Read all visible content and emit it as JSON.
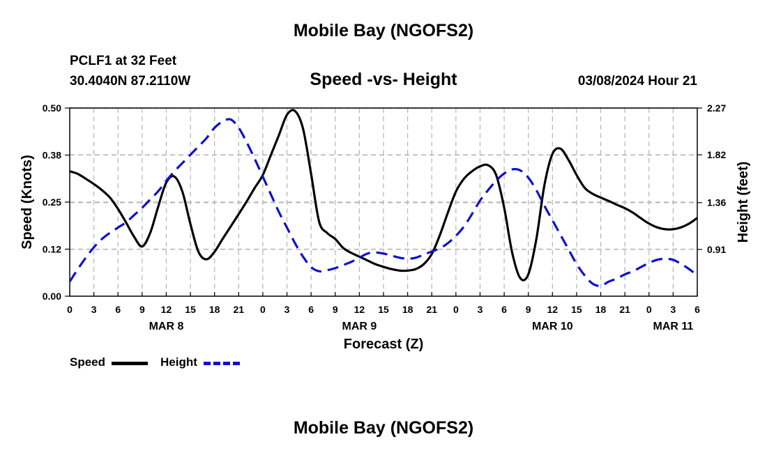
{
  "header": {
    "title_top": "Mobile Bay (NGOFS2)",
    "station_line": "PCLF1 at 32 Feet",
    "coords_line": "30.4040N  87.2110W",
    "chart_title": "Speed -vs- Height",
    "datetime_line": "03/08/2024 Hour 21",
    "title_bottom": "Mobile Bay (NGOFS2)"
  },
  "colors": {
    "speed": "#000000",
    "height": "#1010cc",
    "grid": "#b4b4b4"
  },
  "legend": {
    "speed_label": "Speed",
    "height_label": "Height"
  },
  "chart_data": {
    "type": "line",
    "title": "Speed -vs- Height",
    "xlabel": "Forecast (Z)",
    "ylabel_left": "Speed (Knots)",
    "ylabel_right": "Height (feet)",
    "x_unit": "forecast hour from MAR 8 00Z",
    "xlim": [
      0,
      78
    ],
    "ylim_left": [
      0,
      0.5
    ],
    "ylim_right": [
      0.46,
      2.27
    ],
    "x_ticks": [
      0,
      3,
      6,
      9,
      12,
      15,
      18,
      21,
      24,
      27,
      30,
      33,
      36,
      39,
      42,
      45,
      48,
      51,
      54,
      57,
      60,
      63,
      66,
      69,
      72,
      75,
      78
    ],
    "x_tick_labels": [
      "0",
      "3",
      "6",
      "9",
      "12",
      "15",
      "18",
      "21",
      "0",
      "3",
      "6",
      "9",
      "12",
      "15",
      "18",
      "21",
      "0",
      "3",
      "6",
      "9",
      "12",
      "15",
      "18",
      "21",
      "0",
      "3",
      "6"
    ],
    "day_labels": [
      {
        "label": "MAR 8",
        "x": 12
      },
      {
        "label": "MAR 9",
        "x": 36
      },
      {
        "label": "MAR 10",
        "x": 60
      },
      {
        "label": "MAR 11",
        "x": 75
      }
    ],
    "y_left_ticks": [
      0.0,
      0.125,
      0.25,
      0.375,
      0.5
    ],
    "y_left_tick_labels": [
      "0.00",
      "0.12",
      "0.25",
      "0.38",
      "0.50"
    ],
    "y_right_ticks": [
      0.91,
      1.36,
      1.82,
      2.27
    ],
    "y_right_tick_labels": [
      "0.91",
      "1.36",
      "1.82",
      "2.27"
    ],
    "grid": true,
    "series": [
      {
        "name": "Speed",
        "axis": "left",
        "style": "solid",
        "x": [
          0,
          1,
          2,
          3,
          4,
          5,
          6,
          7,
          8,
          9,
          10,
          11,
          12,
          13,
          14,
          15,
          16,
          17,
          18,
          19,
          20,
          21,
          22,
          23,
          24,
          25,
          26,
          27,
          28,
          29,
          30,
          31,
          32,
          33,
          34,
          35,
          36,
          37,
          38,
          39,
          40,
          41,
          42,
          43,
          44,
          45,
          46,
          47,
          48,
          49,
          50,
          51,
          52,
          53,
          54,
          55,
          56,
          57,
          58,
          59,
          60,
          61,
          62,
          63,
          64,
          65,
          66,
          67,
          68,
          69,
          70,
          71,
          72,
          73,
          74,
          75,
          76,
          77,
          78
        ],
        "values": [
          0.332,
          0.325,
          0.312,
          0.298,
          0.282,
          0.262,
          0.232,
          0.196,
          0.158,
          0.132,
          0.168,
          0.238,
          0.302,
          0.318,
          0.278,
          0.192,
          0.118,
          0.098,
          0.118,
          0.152,
          0.185,
          0.218,
          0.252,
          0.288,
          0.322,
          0.375,
          0.428,
          0.482,
          0.492,
          0.445,
          0.325,
          0.198,
          0.168,
          0.152,
          0.128,
          0.115,
          0.105,
          0.095,
          0.085,
          0.078,
          0.072,
          0.068,
          0.068,
          0.072,
          0.085,
          0.112,
          0.162,
          0.222,
          0.278,
          0.312,
          0.332,
          0.345,
          0.348,
          0.322,
          0.235,
          0.115,
          0.048,
          0.058,
          0.152,
          0.295,
          0.378,
          0.392,
          0.362,
          0.322,
          0.288,
          0.272,
          0.262,
          0.253,
          0.243,
          0.234,
          0.222,
          0.207,
          0.193,
          0.183,
          0.178,
          0.178,
          0.183,
          0.193,
          0.208
        ]
      },
      {
        "name": "Height",
        "axis": "right",
        "style": "dashed",
        "x": [
          0,
          1,
          2,
          3,
          4,
          5,
          6,
          7,
          8,
          9,
          10,
          11,
          12,
          13,
          14,
          15,
          16,
          17,
          18,
          19,
          20,
          21,
          22,
          23,
          24,
          25,
          26,
          27,
          28,
          29,
          30,
          31,
          32,
          33,
          34,
          35,
          36,
          37,
          38,
          39,
          40,
          41,
          42,
          43,
          44,
          45,
          46,
          47,
          48,
          49,
          50,
          51,
          52,
          53,
          54,
          55,
          56,
          57,
          58,
          59,
          60,
          61,
          62,
          63,
          64,
          65,
          66,
          67,
          68,
          69,
          70,
          71,
          72,
          73,
          74,
          75,
          76,
          77,
          78
        ],
        "values": [
          0.6,
          0.72,
          0.83,
          0.93,
          1.01,
          1.07,
          1.12,
          1.17,
          1.24,
          1.31,
          1.39,
          1.47,
          1.57,
          1.66,
          1.74,
          1.82,
          1.9,
          1.98,
          2.08,
          2.14,
          2.16,
          2.08,
          1.94,
          1.78,
          1.61,
          1.44,
          1.27,
          1.12,
          0.97,
          0.84,
          0.74,
          0.7,
          0.71,
          0.73,
          0.76,
          0.79,
          0.83,
          0.87,
          0.88,
          0.87,
          0.85,
          0.83,
          0.82,
          0.83,
          0.86,
          0.89,
          0.92,
          0.97,
          1.04,
          1.13,
          1.25,
          1.38,
          1.48,
          1.57,
          1.64,
          1.68,
          1.67,
          1.6,
          1.48,
          1.33,
          1.19,
          1.05,
          0.91,
          0.77,
          0.66,
          0.58,
          0.56,
          0.6,
          0.63,
          0.67,
          0.7,
          0.74,
          0.78,
          0.81,
          0.82,
          0.81,
          0.77,
          0.72,
          0.66
        ]
      }
    ]
  }
}
